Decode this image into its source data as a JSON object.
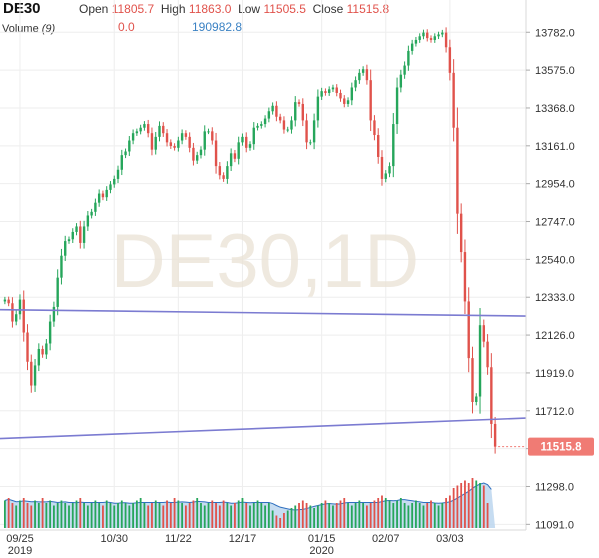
{
  "header": {
    "symbol": "DE30",
    "open_label": "Open",
    "open_value": "11805.7",
    "high_label": "High",
    "high_value": "11863.0",
    "low_label": "Low",
    "low_value": "11505.5",
    "close_label": "Close",
    "close_value": "11515.8",
    "volume_label": "Volume",
    "volume_period": "(9)",
    "volume_value": "0.0",
    "volume_ma_value": "190982.8"
  },
  "watermark": "DE30,1D",
  "colors": {
    "up": "#26a65b",
    "down": "#e0524b",
    "trendline": "#7b7bd1",
    "price_badge": "#f07b74",
    "volume_area": "#bcd6ef",
    "volume_ma": "#2f6fbf",
    "grid": "#eeeeee"
  },
  "chart_data": {
    "type": "candlestick",
    "title": "DE30",
    "timeframe": "1D",
    "y_ticks": [
      11091.0,
      11298.0,
      11505.0,
      11712.0,
      11919.0,
      12126.0,
      12333.0,
      12540.0,
      12747.0,
      12954.0,
      13161.0,
      13368.0,
      13575.0,
      13782.0
    ],
    "y_tick_labels": [
      "11091.0",
      "11298.0",
      "11712.0",
      "11919.0",
      "12126.0",
      "12333.0",
      "12540.0",
      "12747.0",
      "12954.0",
      "13161.0",
      "13368.0",
      "13575.0",
      "13782.0"
    ],
    "ylim": [
      11060,
      13860
    ],
    "last_price": 11515.8,
    "last_price_label": "11515.8",
    "x_ticks": [
      {
        "label": "09/25",
        "sub": "2019",
        "date": "2019-09-25"
      },
      {
        "label": "10/30",
        "sub": "",
        "date": "2019-10-30"
      },
      {
        "label": "11/22",
        "sub": "",
        "date": "2019-11-22"
      },
      {
        "label": "12/17",
        "sub": "",
        "date": "2019-12-17"
      },
      {
        "label": "01/15",
        "sub": "2020",
        "date": "2020-01-15"
      },
      {
        "label": "02/07",
        "sub": "",
        "date": "2020-02-07"
      },
      {
        "label": "03/03",
        "sub": "",
        "date": "2020-03-03"
      }
    ],
    "start_date": "2019-09-19",
    "closes": [
      12320,
      12300,
      12200,
      12240,
      12320,
      12140,
      11980,
      11850,
      11960,
      12050,
      12020,
      12080,
      12200,
      12280,
      12440,
      12560,
      12640,
      12650,
      12690,
      12720,
      12630,
      12720,
      12780,
      12800,
      12850,
      12900,
      12880,
      12920,
      12950,
      12980,
      13030,
      13110,
      13130,
      13190,
      13230,
      13240,
      13260,
      13280,
      13230,
      13140,
      13210,
      13270,
      13230,
      13180,
      13160,
      13150,
      13190,
      13230,
      13210,
      13150,
      13080,
      13110,
      13140,
      13240,
      13240,
      13190,
      13050,
      13000,
      12980,
      13050,
      13120,
      13090,
      13180,
      13210,
      13150,
      13170,
      13260,
      13270,
      13280,
      13310,
      13350,
      13380,
      13320,
      13300,
      13250,
      13250,
      13300,
      13400,
      13390,
      13300,
      13180,
      13180,
      13300,
      13430,
      13460,
      13450,
      13470,
      13480,
      13450,
      13420,
      13390,
      13410,
      13480,
      13520,
      13560,
      13580,
      13520,
      13300,
      13220,
      13100,
      12980,
      13010,
      13050,
      13280,
      13480,
      13550,
      13600,
      13680,
      13720,
      13740,
      13760,
      13780,
      13750,
      13740,
      13760,
      13770,
      13780,
      13700,
      13560,
      13260,
      12790,
      12580,
      12310,
      12000,
      11760,
      11790,
      12180,
      12090,
      11950,
      11640,
      11515.8
    ],
    "volume": [
      0.55,
      0.6,
      0.5,
      0.45,
      0.55,
      0.6,
      0.5,
      0.45,
      0.55,
      0.5,
      0.6,
      0.5,
      0.55,
      0.45,
      0.5,
      0.55,
      0.5,
      0.45,
      0.5,
      0.55,
      0.6,
      0.5,
      0.45,
      0.5,
      0.55,
      0.5,
      0.45,
      0.55,
      0.5,
      0.45,
      0.5,
      0.55,
      0.5,
      0.45,
      0.5,
      0.55,
      0.6,
      0.5,
      0.45,
      0.5,
      0.55,
      0.5,
      0.45,
      0.55,
      0.5,
      0.6,
      0.55,
      0.5,
      0.45,
      0.5,
      0.55,
      0.6,
      0.5,
      0.45,
      0.5,
      0.55,
      0.5,
      0.45,
      0.55,
      0.5,
      0.45,
      0.5,
      0.55,
      0.6,
      0.5,
      0.45,
      0.5,
      0.55,
      0.5,
      0.45,
      0.5,
      0.35,
      0.25,
      0.2,
      0.3,
      0.35,
      0.4,
      0.45,
      0.5,
      0.55,
      0.5,
      0.45,
      0.4,
      0.45,
      0.5,
      0.55,
      0.5,
      0.45,
      0.5,
      0.55,
      0.6,
      0.5,
      0.45,
      0.5,
      0.55,
      0.5,
      0.45,
      0.5,
      0.55,
      0.6,
      0.65,
      0.6,
      0.55,
      0.5,
      0.55,
      0.6,
      0.5,
      0.45,
      0.5,
      0.55,
      0.5,
      0.45,
      0.5,
      0.55,
      0.5,
      0.45,
      0.5,
      0.6,
      0.65,
      0.8,
      0.85,
      0.9,
      0.95,
      0.9,
      1.0,
      0.95,
      0.9,
      0.85,
      0.5,
      0.0
    ],
    "trendlines": [
      {
        "start_date": "2019-09-19",
        "start": 12265,
        "end_date": "2020-03-04",
        "end": 12230
      },
      {
        "start_date": "2019-09-19",
        "start": 11560,
        "end_date": "2020-03-04",
        "end": 11672
      }
    ]
  }
}
